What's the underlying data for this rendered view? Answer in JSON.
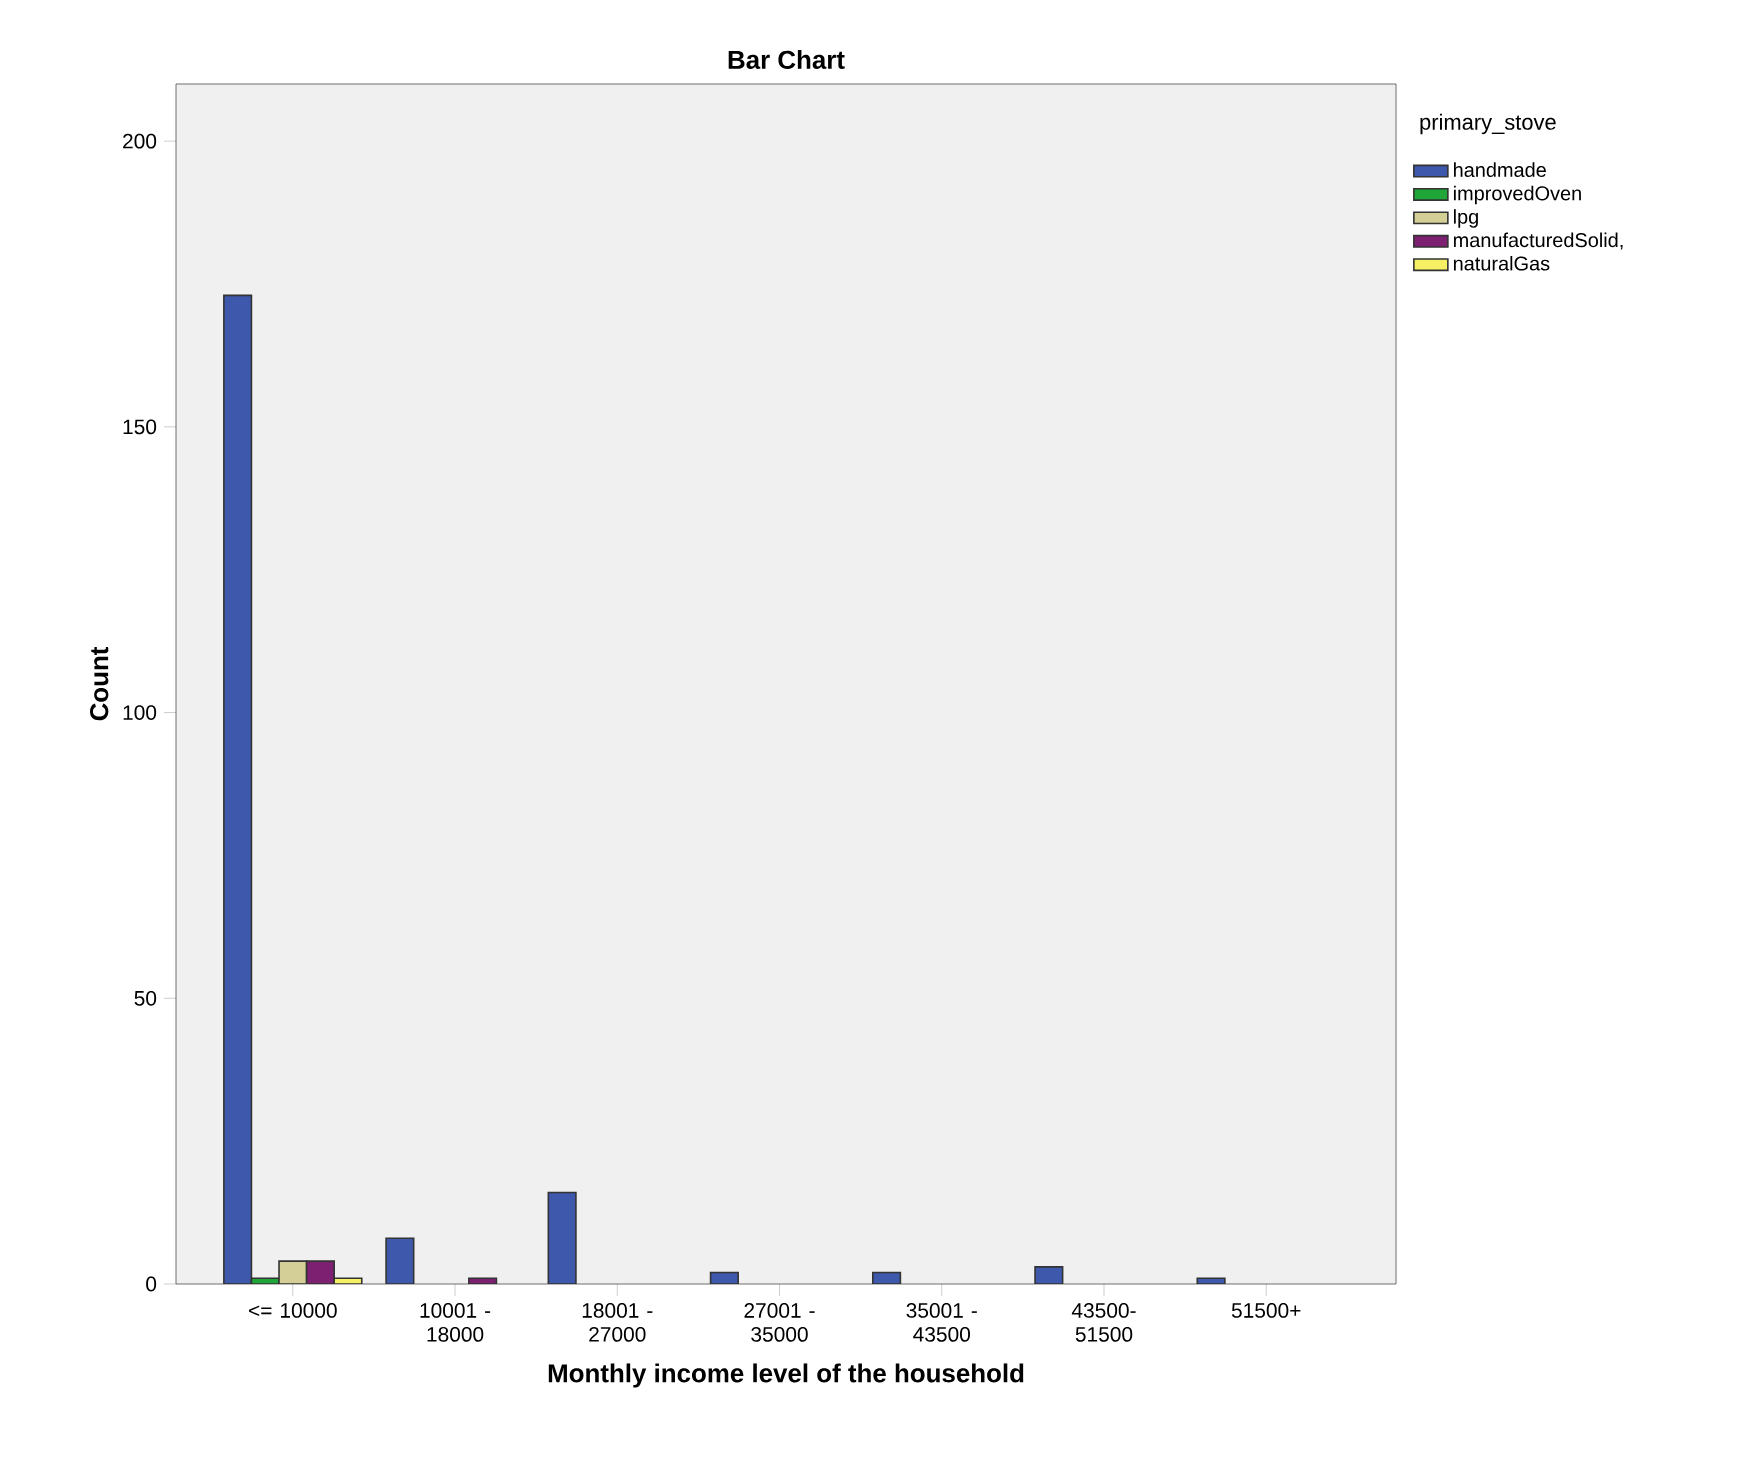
{
  "chart_data": {
    "type": "bar",
    "title": "Bar Chart",
    "xlabel": "Monthly income level of the household",
    "ylabel": "Count",
    "legend_title": "primary_stove",
    "categories": [
      "<= 10000",
      "10001 - 18000",
      "18001 - 27000",
      "27001 - 35000",
      "35001 - 43500",
      "43500- 51500",
      "51500+"
    ],
    "series": [
      {
        "name": "handmade",
        "color": "#3e58ac",
        "values": [
          173,
          8,
          16,
          2,
          2,
          3,
          1
        ]
      },
      {
        "name": "improvedOven",
        "color": "#1fa538",
        "values": [
          1,
          null,
          null,
          null,
          null,
          null,
          null
        ]
      },
      {
        "name": "lpg",
        "color": "#d4cf96",
        "values": [
          4,
          null,
          null,
          null,
          null,
          null,
          null
        ]
      },
      {
        "name": "manufacturedSolid,",
        "color": "#7d2072",
        "values": [
          4,
          1,
          null,
          null,
          null,
          null,
          null
        ]
      },
      {
        "name": "naturalGas",
        "color": "#f5f064",
        "values": [
          1,
          null,
          null,
          null,
          null,
          null,
          null
        ]
      }
    ],
    "ylim": [
      0,
      210
    ],
    "yticks": [
      0,
      50,
      100,
      150,
      200
    ],
    "grid": false,
    "legend": "top right"
  }
}
